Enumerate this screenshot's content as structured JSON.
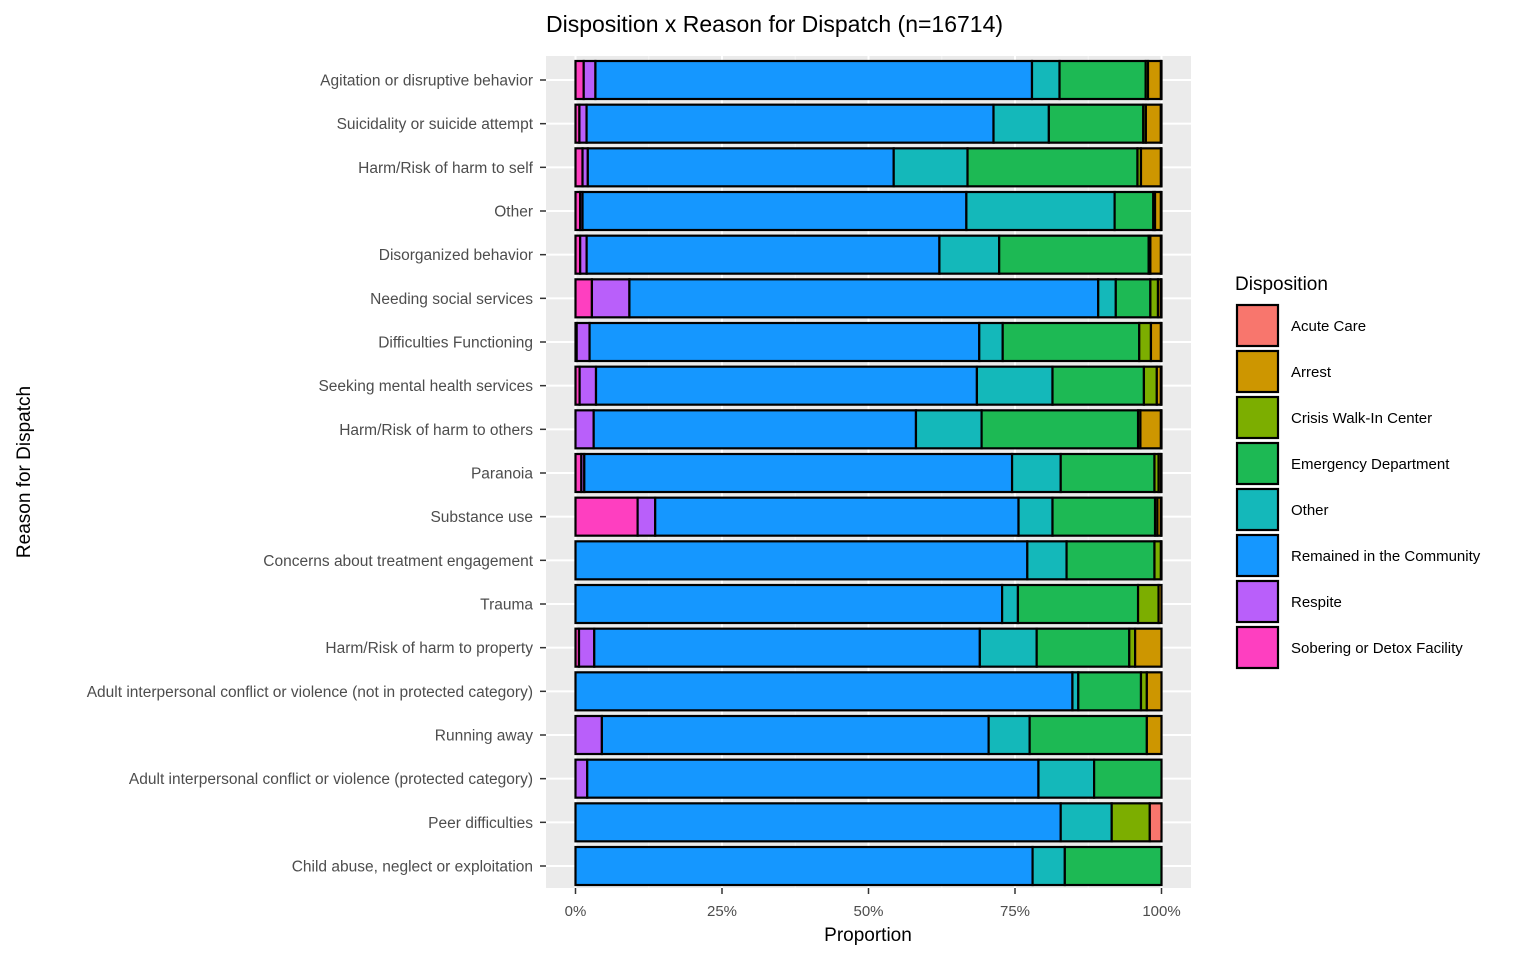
{
  "chart_data": {
    "type": "bar",
    "orientation": "horizontal",
    "stacked": "percent",
    "title": "Disposition x Reason for Dispatch (n=16714)",
    "xlabel": "Proportion",
    "ylabel": "Reason for Dispatch",
    "xlim": [
      0,
      1
    ],
    "xticks": [
      "0%",
      "25%",
      "50%",
      "75%",
      "100%"
    ],
    "grid": true,
    "legend_title": "Disposition",
    "legend_position": "right",
    "categories": [
      "Agitation or disruptive behavior",
      "Suicidality or suicide attempt",
      "Harm/Risk of harm to self",
      "Other",
      "Disorganized behavior",
      "Needing social services",
      "Difficulties Functioning",
      "Seeking mental health services",
      "Harm/Risk of harm to others",
      "Paranoia",
      "Substance use",
      "Concerns about treatment engagement",
      "Trauma",
      "Harm/Risk of harm to property",
      "Adult interpersonal conflict or violence (not in protected category)",
      "Running away",
      "Adult interpersonal conflict or violence (protected category)",
      "Peer difficulties",
      "Child abuse, neglect or exploitation"
    ],
    "stack_order": [
      "Sobering or Detox Facility",
      "Respite",
      "Remained in the Community",
      "Other",
      "Emergency Department",
      "Crisis Walk-In Center",
      "Arrest",
      "Acute Care"
    ],
    "series": [
      {
        "name": "Acute Care",
        "color": "#F8766D",
        "values": [
          0.001,
          0.001,
          0.001,
          0.001,
          0.001,
          0.001,
          0.001,
          0.001,
          0.001,
          0.001,
          0.001,
          0.0,
          0.0,
          0.0,
          0.0,
          0.0,
          0.0,
          0.02,
          0.0
        ]
      },
      {
        "name": "Arrest",
        "color": "#CD9600",
        "values": [
          0.022,
          0.023,
          0.034,
          0.01,
          0.018,
          0.005,
          0.017,
          0.007,
          0.035,
          0.004,
          0.006,
          0.001,
          0.005,
          0.045,
          0.025,
          0.025,
          0.0,
          0.0,
          0.0
        ]
      },
      {
        "name": "Crisis Walk-In Center",
        "color": "#7CAE00",
        "values": [
          0.004,
          0.004,
          0.006,
          0.003,
          0.003,
          0.013,
          0.02,
          0.022,
          0.004,
          0.007,
          0.004,
          0.011,
          0.035,
          0.01,
          0.01,
          0.0,
          0.0,
          0.065,
          0.0
        ]
      },
      {
        "name": "Emergency Department",
        "color": "#1DB954",
        "values": [
          0.147,
          0.145,
          0.29,
          0.066,
          0.255,
          0.059,
          0.233,
          0.156,
          0.267,
          0.16,
          0.175,
          0.15,
          0.205,
          0.158,
          0.107,
          0.2,
          0.115,
          0.0,
          0.165
        ]
      },
      {
        "name": "Other",
        "color": "#14B8BA",
        "values": [
          0.047,
          0.085,
          0.126,
          0.253,
          0.102,
          0.03,
          0.04,
          0.129,
          0.112,
          0.083,
          0.058,
          0.067,
          0.027,
          0.097,
          0.01,
          0.07,
          0.095,
          0.087,
          0.055
        ]
      },
      {
        "name": "Remained in the Community",
        "color": "#1597FF",
        "values": [
          0.745,
          0.625,
          0.522,
          0.655,
          0.602,
          0.8,
          0.665,
          0.65,
          0.55,
          0.73,
          0.62,
          0.771,
          0.728,
          0.658,
          0.848,
          0.66,
          0.77,
          0.828,
          0.78
        ]
      },
      {
        "name": "Respite",
        "color": "#B95FFA",
        "values": [
          0.02,
          0.011,
          0.009,
          0.004,
          0.011,
          0.064,
          0.022,
          0.028,
          0.031,
          0.005,
          0.03,
          0.0,
          0.0,
          0.026,
          0.0,
          0.045,
          0.02,
          0.0,
          0.0
        ]
      },
      {
        "name": "Sobering or Detox Facility",
        "color": "#FE3FC0",
        "values": [
          0.014,
          0.006,
          0.012,
          0.008,
          0.008,
          0.028,
          0.002,
          0.007,
          0.0,
          0.01,
          0.106,
          0.0,
          0.0,
          0.006,
          0.0,
          0.0,
          0.0,
          0.0,
          0.0
        ]
      }
    ]
  }
}
